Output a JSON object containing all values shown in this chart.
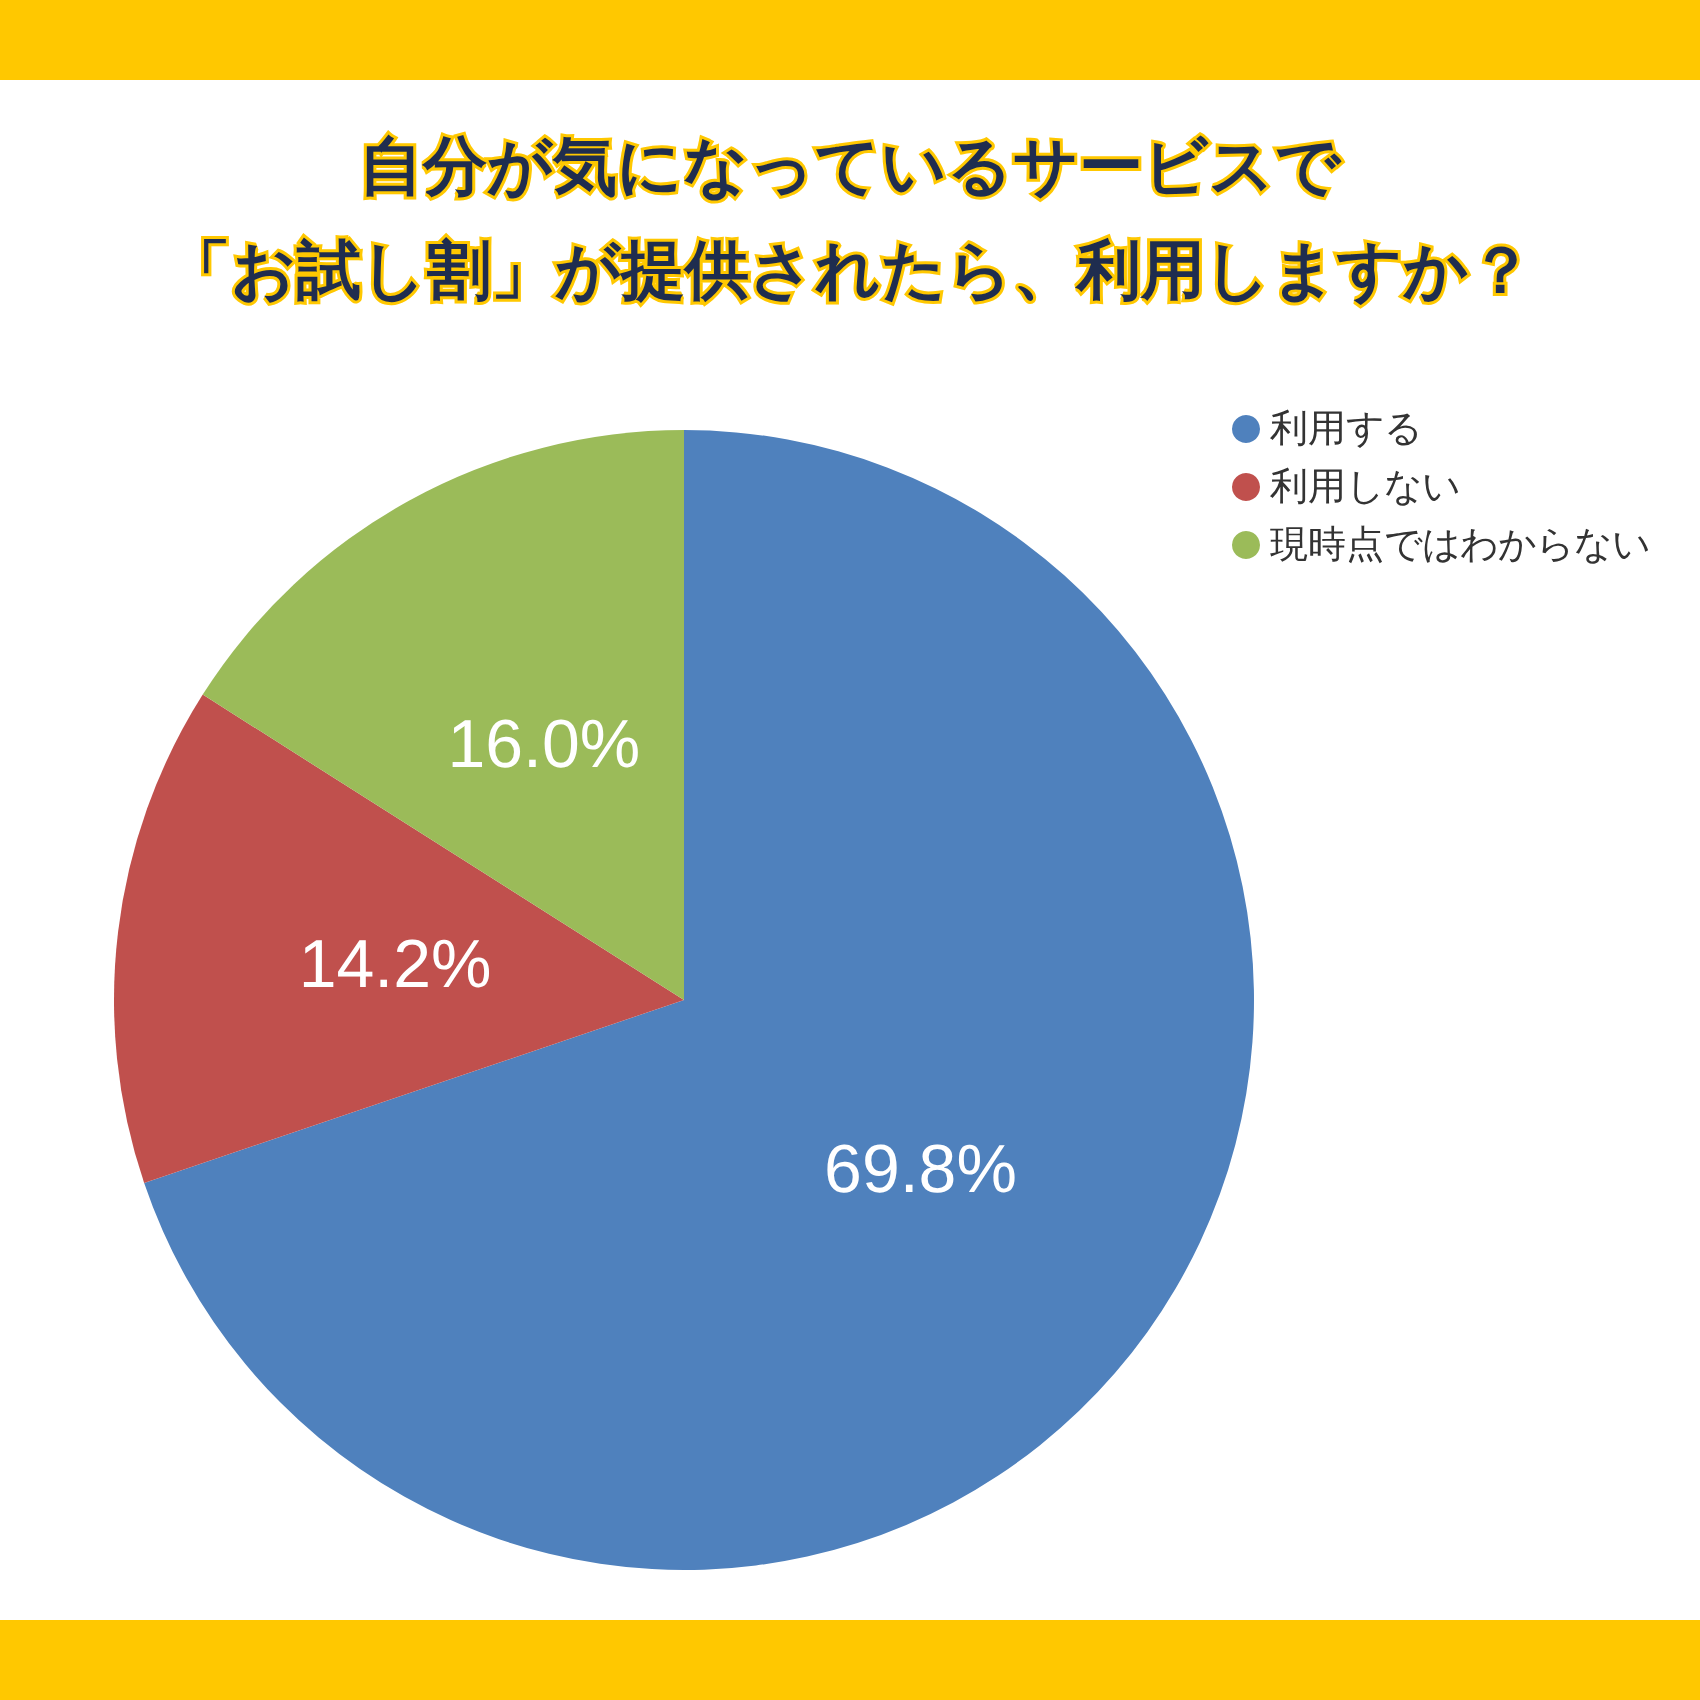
{
  "chart_data": {
    "type": "pie",
    "title": "自分が気になっているサービスで",
    "subtitle": "「お試し割」が提供されたら、利用しますか？",
    "categories": [
      "利用する",
      "利用しない",
      "現時点ではわからない"
    ],
    "values": [
      69.8,
      14.2,
      16.0
    ],
    "colors": [
      "#4f81bd",
      "#c0504d",
      "#9bbb59"
    ],
    "value_labels": [
      "69.8%",
      "14.2%",
      "16.0%"
    ],
    "legend": "top right"
  }
}
